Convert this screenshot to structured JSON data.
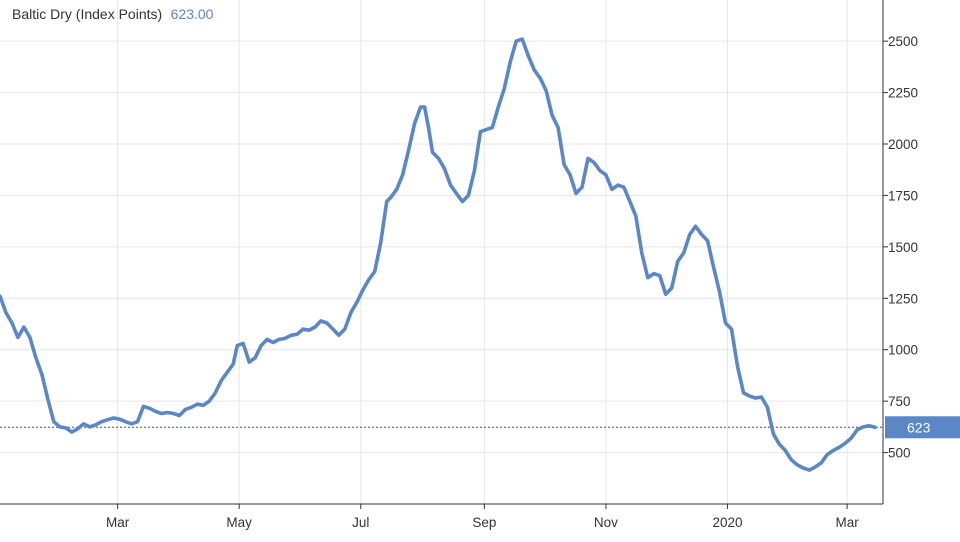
{
  "header": {
    "title": "Baltic Dry (Index Points)",
    "last_value_label": "623.00"
  },
  "colors": {
    "series": "#5b87c7",
    "last_value_line": "#3a3af0",
    "badge": "#5b87c7"
  },
  "chart_data": {
    "type": "line",
    "title": "Baltic Dry (Index Points)",
    "xlabel": "",
    "ylabel": "",
    "x_range": [
      "2019-01-01",
      "2020-03-19"
    ],
    "ylim": [
      250,
      2700
    ],
    "y_ticks": [
      500,
      750,
      1000,
      1250,
      1500,
      1750,
      2000,
      2250,
      2500
    ],
    "x_ticks": [
      {
        "date": "2019-03-01",
        "label": "Mar"
      },
      {
        "date": "2019-05-01",
        "label": "May"
      },
      {
        "date": "2019-07-01",
        "label": "Jul"
      },
      {
        "date": "2019-09-01",
        "label": "Sep"
      },
      {
        "date": "2019-11-01",
        "label": "Nov"
      },
      {
        "date": "2020-01-01",
        "label": "2020"
      },
      {
        "date": "2020-03-01",
        "label": "Mar"
      }
    ],
    "grid": true,
    "last_value": 623,
    "last_value_badge": "623",
    "series": [
      {
        "points": [
          [
            "2019-01-01",
            1260
          ],
          [
            "2019-01-04",
            1180
          ],
          [
            "2019-01-07",
            1130
          ],
          [
            "2019-01-10",
            1060
          ],
          [
            "2019-01-13",
            1110
          ],
          [
            "2019-01-16",
            1060
          ],
          [
            "2019-01-19",
            960
          ],
          [
            "2019-01-22",
            880
          ],
          [
            "2019-01-25",
            760
          ],
          [
            "2019-01-28",
            650
          ],
          [
            "2019-01-31",
            625
          ],
          [
            "2019-02-03",
            620
          ],
          [
            "2019-02-06",
            600
          ],
          [
            "2019-02-09",
            615
          ],
          [
            "2019-02-12",
            640
          ],
          [
            "2019-02-15",
            625
          ],
          [
            "2019-02-18",
            635
          ],
          [
            "2019-02-21",
            650
          ],
          [
            "2019-02-24",
            660
          ],
          [
            "2019-02-27",
            668
          ],
          [
            "2019-03-02",
            662
          ],
          [
            "2019-03-05",
            650
          ],
          [
            "2019-03-08",
            640
          ],
          [
            "2019-03-11",
            650
          ],
          [
            "2019-03-14",
            725
          ],
          [
            "2019-03-17",
            715
          ],
          [
            "2019-03-20",
            700
          ],
          [
            "2019-03-23",
            690
          ],
          [
            "2019-03-26",
            695
          ],
          [
            "2019-03-29",
            690
          ],
          [
            "2019-04-01",
            680
          ],
          [
            "2019-04-04",
            710
          ],
          [
            "2019-04-07",
            720
          ],
          [
            "2019-04-10",
            735
          ],
          [
            "2019-04-13",
            730
          ],
          [
            "2019-04-16",
            750
          ],
          [
            "2019-04-19",
            790
          ],
          [
            "2019-04-22",
            850
          ],
          [
            "2019-04-25",
            890
          ],
          [
            "2019-04-28",
            930
          ],
          [
            "2019-04-30",
            1020
          ],
          [
            "2019-05-03",
            1030
          ],
          [
            "2019-05-06",
            940
          ],
          [
            "2019-05-09",
            960
          ],
          [
            "2019-05-12",
            1020
          ],
          [
            "2019-05-15",
            1050
          ],
          [
            "2019-05-18",
            1035
          ],
          [
            "2019-05-21",
            1050
          ],
          [
            "2019-05-24",
            1055
          ],
          [
            "2019-05-27",
            1070
          ],
          [
            "2019-05-30",
            1075
          ],
          [
            "2019-06-02",
            1100
          ],
          [
            "2019-06-05",
            1095
          ],
          [
            "2019-06-08",
            1110
          ],
          [
            "2019-06-11",
            1140
          ],
          [
            "2019-06-14",
            1130
          ],
          [
            "2019-06-17",
            1100
          ],
          [
            "2019-06-20",
            1070
          ],
          [
            "2019-06-23",
            1100
          ],
          [
            "2019-06-26",
            1180
          ],
          [
            "2019-06-29",
            1230
          ],
          [
            "2019-07-02",
            1290
          ],
          [
            "2019-07-05",
            1340
          ],
          [
            "2019-07-08",
            1380
          ],
          [
            "2019-07-11",
            1520
          ],
          [
            "2019-07-14",
            1720
          ],
          [
            "2019-07-16",
            1740
          ],
          [
            "2019-07-19",
            1780
          ],
          [
            "2019-07-22",
            1850
          ],
          [
            "2019-07-25",
            1970
          ],
          [
            "2019-07-28",
            2100
          ],
          [
            "2019-07-31",
            2180
          ],
          [
            "2019-08-02",
            2180
          ],
          [
            "2019-08-04",
            2080
          ],
          [
            "2019-08-06",
            1960
          ],
          [
            "2019-08-09",
            1930
          ],
          [
            "2019-08-12",
            1880
          ],
          [
            "2019-08-15",
            1800
          ],
          [
            "2019-08-18",
            1760
          ],
          [
            "2019-08-21",
            1720
          ],
          [
            "2019-08-24",
            1750
          ],
          [
            "2019-08-27",
            1870
          ],
          [
            "2019-08-30",
            2060
          ],
          [
            "2019-09-02",
            2070
          ],
          [
            "2019-09-05",
            2080
          ],
          [
            "2019-09-08",
            2180
          ],
          [
            "2019-09-11",
            2270
          ],
          [
            "2019-09-14",
            2400
          ],
          [
            "2019-09-17",
            2500
          ],
          [
            "2019-09-20",
            2510
          ],
          [
            "2019-09-23",
            2430
          ],
          [
            "2019-09-26",
            2360
          ],
          [
            "2019-09-29",
            2320
          ],
          [
            "2019-10-02",
            2260
          ],
          [
            "2019-10-05",
            2140
          ],
          [
            "2019-10-08",
            2080
          ],
          [
            "2019-10-11",
            1900
          ],
          [
            "2019-10-14",
            1850
          ],
          [
            "2019-10-17",
            1760
          ],
          [
            "2019-10-20",
            1790
          ],
          [
            "2019-10-23",
            1930
          ],
          [
            "2019-10-26",
            1910
          ],
          [
            "2019-10-29",
            1870
          ],
          [
            "2019-11-01",
            1850
          ],
          [
            "2019-11-04",
            1780
          ],
          [
            "2019-11-07",
            1800
          ],
          [
            "2019-11-10",
            1790
          ],
          [
            "2019-11-13",
            1720
          ],
          [
            "2019-11-16",
            1650
          ],
          [
            "2019-11-19",
            1470
          ],
          [
            "2019-11-22",
            1350
          ],
          [
            "2019-11-25",
            1370
          ],
          [
            "2019-11-28",
            1360
          ],
          [
            "2019-12-01",
            1270
          ],
          [
            "2019-12-04",
            1300
          ],
          [
            "2019-12-07",
            1430
          ],
          [
            "2019-12-10",
            1470
          ],
          [
            "2019-12-13",
            1560
          ],
          [
            "2019-12-16",
            1600
          ],
          [
            "2019-12-19",
            1560
          ],
          [
            "2019-12-22",
            1530
          ],
          [
            "2019-12-25",
            1400
          ],
          [
            "2019-12-28",
            1280
          ],
          [
            "2019-12-31",
            1130
          ],
          [
            "2020-01-03",
            1100
          ],
          [
            "2020-01-06",
            920
          ],
          [
            "2020-01-09",
            790
          ],
          [
            "2020-01-12",
            775
          ],
          [
            "2020-01-15",
            765
          ],
          [
            "2020-01-18",
            770
          ],
          [
            "2020-01-21",
            720
          ],
          [
            "2020-01-24",
            590
          ],
          [
            "2020-01-27",
            540
          ],
          [
            "2020-01-30",
            510
          ],
          [
            "2020-02-02",
            465
          ],
          [
            "2020-02-05",
            440
          ],
          [
            "2020-02-08",
            425
          ],
          [
            "2020-02-11",
            415
          ],
          [
            "2020-02-14",
            430
          ],
          [
            "2020-02-17",
            450
          ],
          [
            "2020-02-20",
            490
          ],
          [
            "2020-02-23",
            510
          ],
          [
            "2020-02-26",
            525
          ],
          [
            "2020-02-29",
            545
          ],
          [
            "2020-03-03",
            570
          ],
          [
            "2020-03-06",
            610
          ],
          [
            "2020-03-09",
            625
          ],
          [
            "2020-03-12",
            630
          ],
          [
            "2020-03-15",
            623
          ]
        ]
      }
    ]
  }
}
